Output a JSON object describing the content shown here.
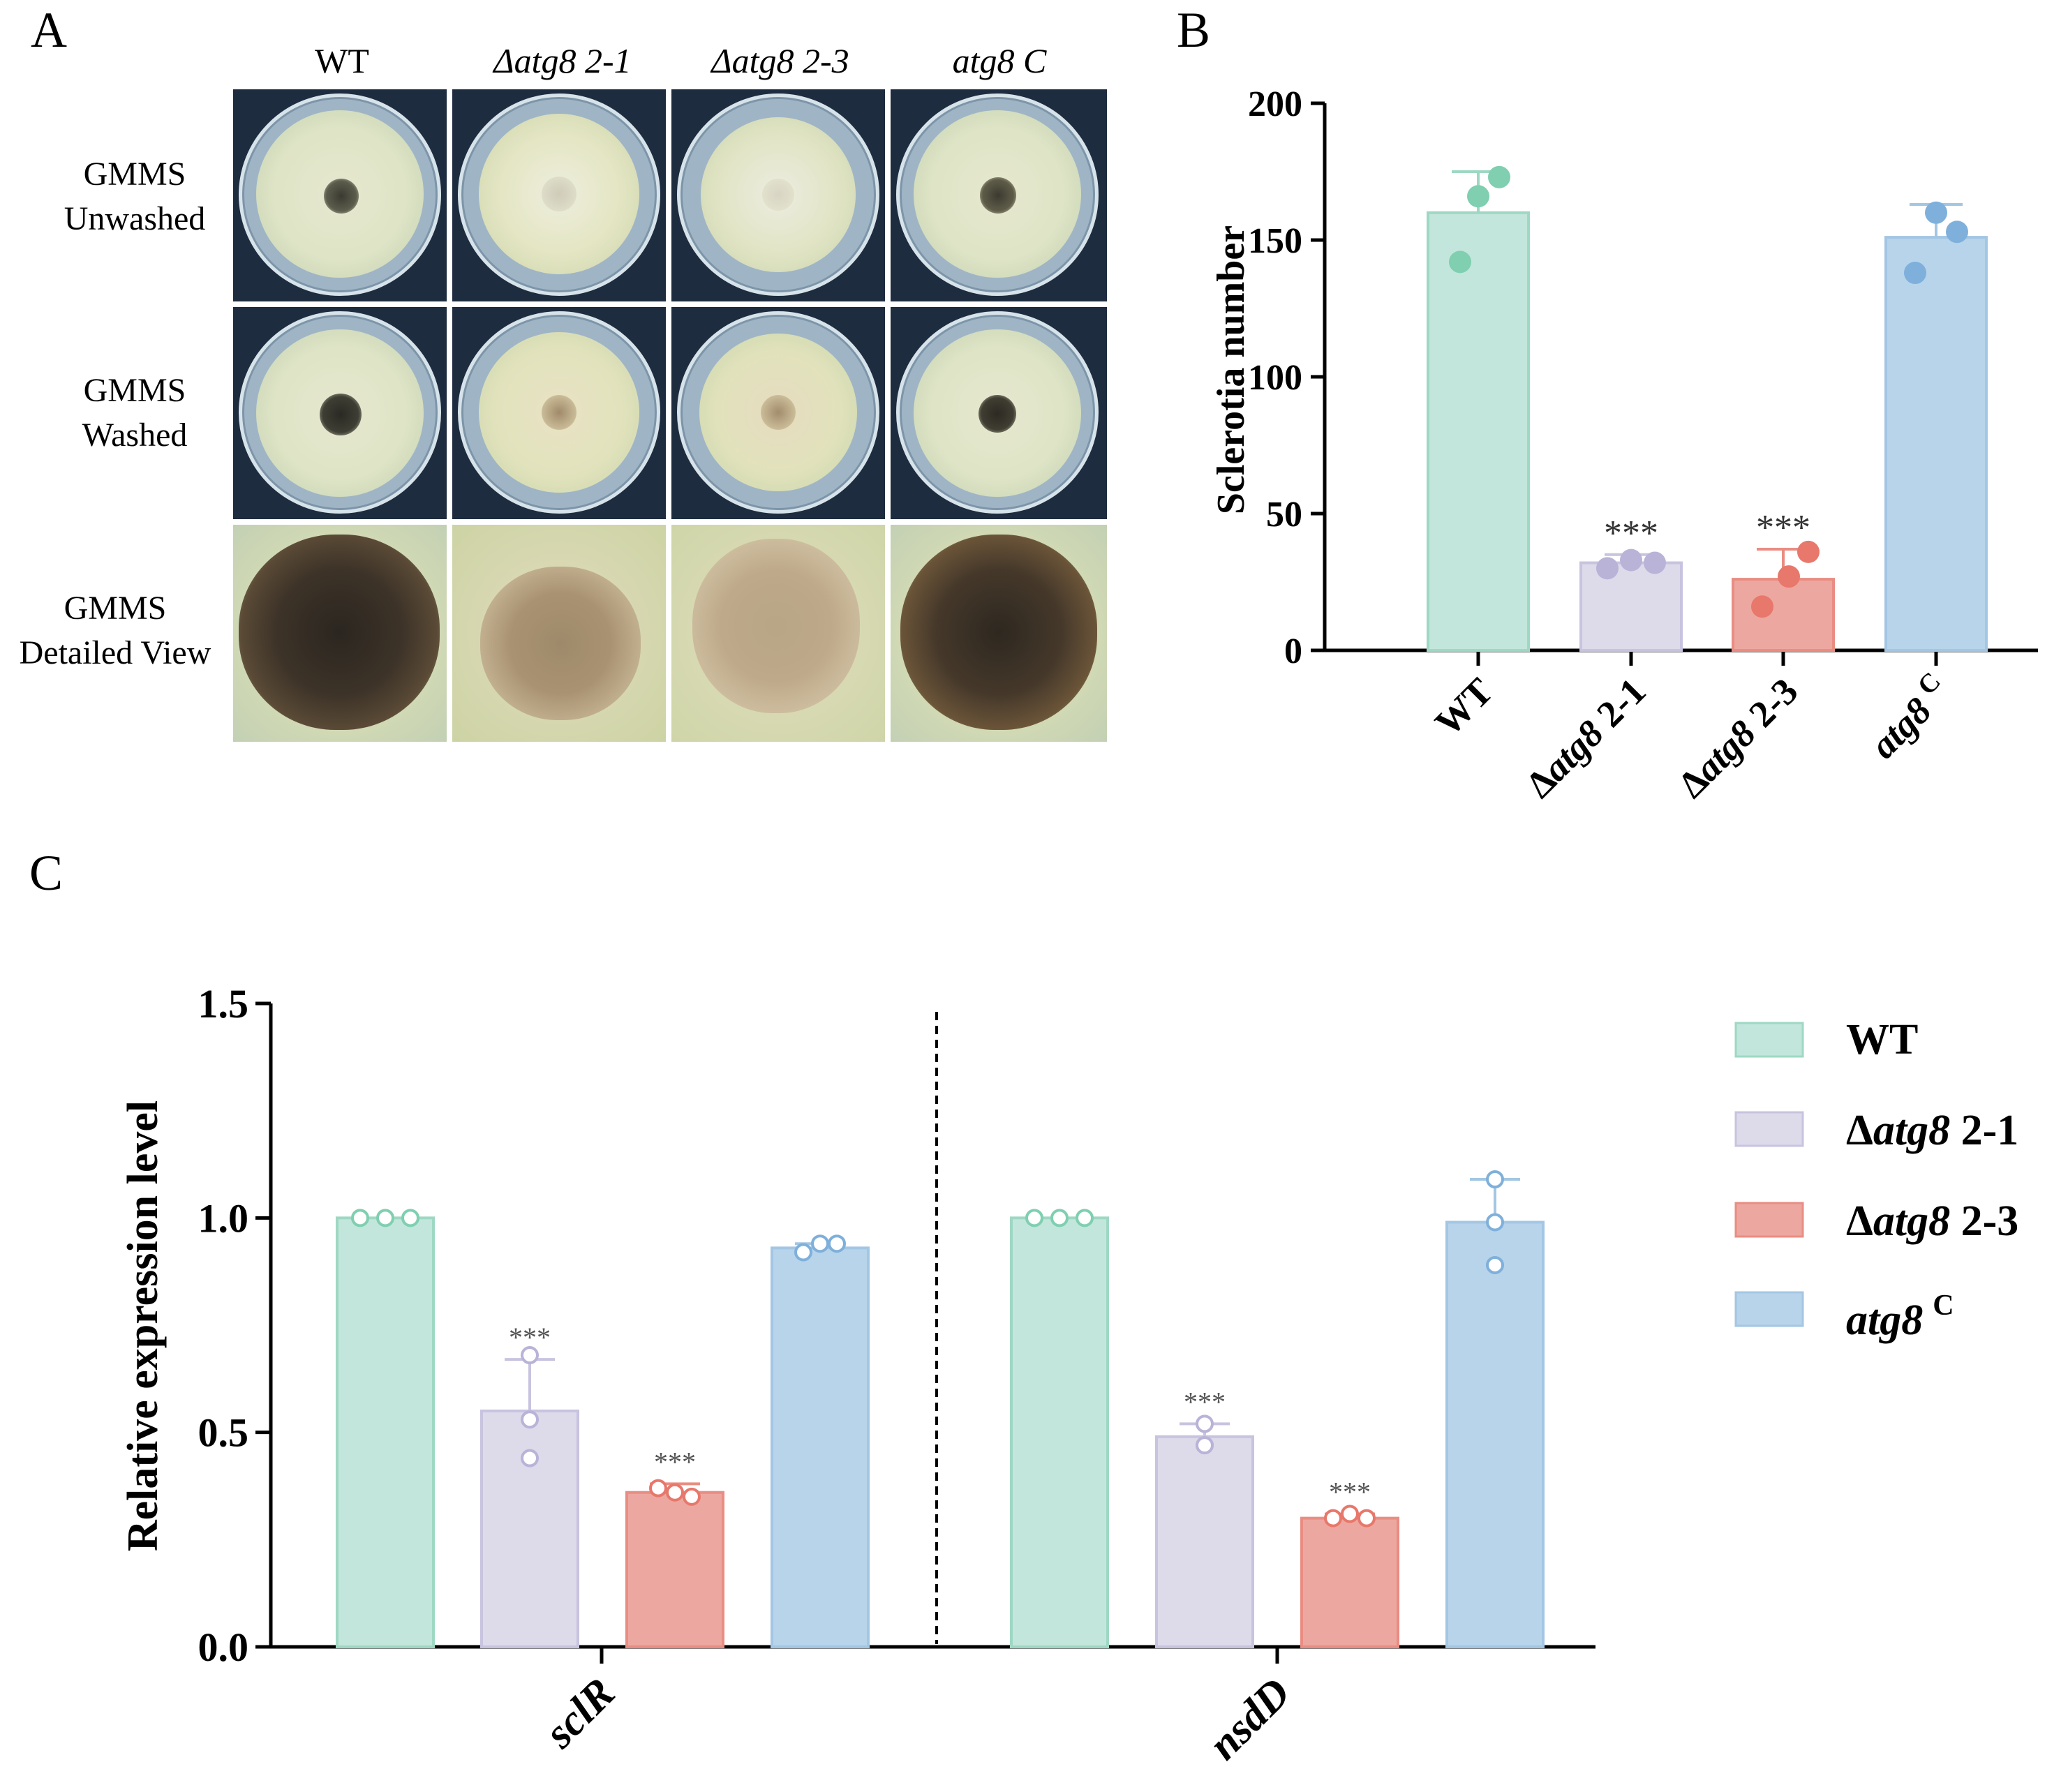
{
  "panel_a": {
    "letter": "A",
    "columns": [
      "WT",
      "Δatg8 2-1",
      "Δatg8 2-3",
      "atg8 C"
    ],
    "rows": [
      {
        "line1": "GMMS",
        "line2": "Unwashed"
      },
      {
        "line1": "GMMS",
        "line2": "Washed"
      },
      {
        "line1": "GMMS",
        "line2": "Detailed View"
      }
    ],
    "photo_description": "Petri dish colony photographs"
  },
  "panel_b": {
    "letter": "B"
  },
  "panel_c": {
    "letter": "C"
  },
  "legend": {
    "wt": "WT",
    "d21_prefix": "Δ",
    "d21_italic": "atg8",
    "d21_suffix": " 2-1",
    "d23_prefix": "Δ",
    "d23_italic": "atg8",
    "d23_suffix": " 2-3",
    "comp_italic": "atg8",
    "comp_sup": "C"
  },
  "colors": {
    "wt_fill": "#c3e6dc",
    "wt_edge": "#9ed8c3",
    "wt_dot": "#7fcfb0",
    "d21_fill": "#dddbea",
    "d21_edge": "#c8c3df",
    "d21_dot": "#b9b3d8",
    "d23_fill": "#eca8a0",
    "d23_edge": "#e98d82",
    "d23_dot": "#e7786b",
    "comp_fill": "#b8d4ea",
    "comp_edge": "#a3c6e3",
    "comp_dot": "#7fb0db"
  },
  "chart_data": [
    {
      "type": "bar",
      "id": "B",
      "categories": [
        "WT",
        "Δatg8 2-1",
        "Δatg8 2-3",
        "atg8 C"
      ],
      "values": [
        160,
        32,
        26,
        151
      ],
      "errors": [
        15,
        3,
        11,
        12
      ],
      "points": [
        [
          142,
          166,
          173
        ],
        [
          30,
          33,
          32
        ],
        [
          16,
          27,
          36
        ],
        [
          138,
          153,
          160
        ]
      ],
      "significance": [
        "",
        "***",
        "***",
        ""
      ],
      "ylabel": "Sclerotia number",
      "ylim": [
        0,
        200
      ],
      "yticks": [
        0,
        50,
        100,
        150,
        200
      ]
    },
    {
      "type": "bar",
      "id": "C",
      "groups": [
        "sclR",
        "nsdD"
      ],
      "series": [
        {
          "name": "WT",
          "values": [
            1.0,
            1.0
          ],
          "errors": [
            0,
            0
          ],
          "points": [
            [
              1.0,
              1.0,
              1.0
            ],
            [
              1.0,
              1.0,
              1.0
            ]
          ],
          "significance": [
            "",
            ""
          ]
        },
        {
          "name": "Δatg8 2-1",
          "values": [
            0.55,
            0.49
          ],
          "errors": [
            0.12,
            0.03
          ],
          "points": [
            [
              0.68,
              0.53,
              0.44
            ],
            [
              0.52,
              0.47,
              0.47
            ]
          ],
          "significance": [
            "***",
            "***"
          ]
        },
        {
          "name": "Δatg8 2-3",
          "values": [
            0.36,
            0.3
          ],
          "errors": [
            0.02,
            0.01
          ],
          "points": [
            [
              0.37,
              0.36,
              0.35
            ],
            [
              0.3,
              0.31,
              0.3
            ]
          ],
          "significance": [
            "***",
            "***"
          ]
        },
        {
          "name": "atg8 C",
          "values": [
            0.93,
            0.99
          ],
          "errors": [
            0.01,
            0.1
          ],
          "points": [
            [
              0.92,
              0.94,
              0.94
            ],
            [
              1.09,
              0.99,
              0.89
            ]
          ],
          "significance": [
            "",
            ""
          ]
        }
      ],
      "ylabel": "Relative expression level",
      "ylim": [
        0,
        1.5
      ],
      "yticks": [
        "0.0",
        "0.5",
        "1.0",
        "1.5"
      ]
    }
  ]
}
